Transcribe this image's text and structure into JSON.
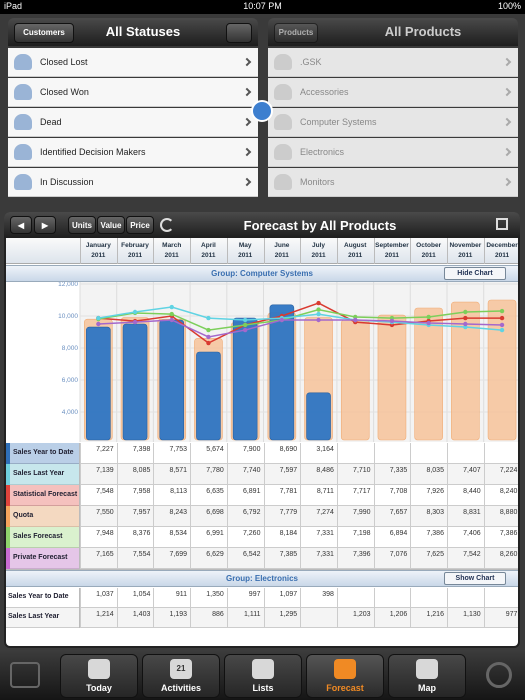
{
  "status_bar": {
    "device": "iPad",
    "time": "10:07 PM",
    "battery": "100%"
  },
  "left_panel": {
    "button": "Customers",
    "title": "All Statuses",
    "items": [
      "Closed Lost",
      "Closed Won",
      "Dead",
      "Identified Decision Makers",
      "In Discussion"
    ]
  },
  "right_panel": {
    "button": "Products",
    "title": "All Products",
    "items": [
      ".GSK",
      "Accessories",
      "Computer Systems",
      "Electronics",
      "Monitors"
    ]
  },
  "forecast": {
    "title": "Forecast by All Products",
    "toggles": [
      "Units",
      "Value",
      "Price"
    ],
    "months": [
      {
        "month": "January",
        "year": "2011"
      },
      {
        "month": "February",
        "year": "2011"
      },
      {
        "month": "March",
        "year": "2011"
      },
      {
        "month": "April",
        "year": "2011"
      },
      {
        "month": "May",
        "year": "2011"
      },
      {
        "month": "June",
        "year": "2011"
      },
      {
        "month": "July",
        "year": "2011"
      },
      {
        "month": "August",
        "year": "2011"
      },
      {
        "month": "September",
        "year": "2011"
      },
      {
        "month": "October",
        "year": "2011"
      },
      {
        "month": "November",
        "year": "2011"
      },
      {
        "month": "December",
        "year": "2011"
      }
    ],
    "groups": [
      {
        "title": "Group: Computer Systems",
        "button": "Hide Chart",
        "rows": [
          {
            "label": "Sales Year to Date",
            "color": "#2f6fb8",
            "cells": [
              "7,227",
              "7,398",
              "7,753",
              "5,674",
              "7,900",
              "8,690",
              "3,164",
              null,
              null,
              null,
              null,
              null
            ]
          },
          {
            "label": "Sales Last Year",
            "color": "#6fd0de",
            "cells": [
              "7,139",
              "8,085",
              "8,571",
              "7,780",
              "7,740",
              "7,597",
              "8,486",
              "7,710",
              "7,335",
              "8,035",
              "7,407",
              "7,224"
            ]
          },
          {
            "label": "Statistical Forecast",
            "color": "#e0443c",
            "cells": [
              "7,548",
              "7,958",
              "8,113",
              "6,635",
              "6,891",
              "7,781",
              "8,711",
              "7,717",
              "7,708",
              "7,926",
              "8,440",
              "8,240"
            ]
          },
          {
            "label": "Quota",
            "color": "#f5a45c",
            "cells": [
              "7,550",
              "7,957",
              "8,243",
              "6,698",
              "6,792",
              "7,779",
              "7,274",
              "7,990",
              "7,657",
              "8,303",
              "8,831",
              "8,880"
            ]
          },
          {
            "label": "Sales Forecast",
            "color": "#8fd46c",
            "cells": [
              "7,948",
              "8,376",
              "8,534",
              "6,991",
              "7,260",
              "8,184",
              "7,331",
              "7,198",
              "6,894",
              "7,386",
              "7,406",
              "7,386"
            ]
          },
          {
            "label": "Private Forecast",
            "color": "#c96cd2",
            "cells": [
              "7,165",
              "7,554",
              "7,699",
              "6,629",
              "6,542",
              "7,385",
              "7,331",
              "7,396",
              "7,076",
              "7,625",
              "7,542",
              "8,260"
            ]
          }
        ]
      },
      {
        "title": "Group: Electronics",
        "button": "Show Chart",
        "rows": [
          {
            "label": "Sales Year to Date",
            "color": "#2f6fb8",
            "cells": [
              "1,037",
              "1,054",
              "911",
              "1,350",
              "997",
              "1,097",
              "398",
              null,
              null,
              null,
              null,
              null
            ]
          },
          {
            "label": "Sales Last Year",
            "color": "#6fd0de",
            "cells": [
              "1,214",
              "1,403",
              "1,193",
              "886",
              "1,111",
              "1,295",
              null,
              "1,203",
              "1,206",
              "1,216",
              "1,130",
              "977"
            ]
          }
        ]
      }
    ],
    "chart_data": {
      "type": "bar",
      "ylim": [
        2250,
        12000
      ],
      "yticks": [
        {
          "value": 4000,
          "label": "4,000"
        },
        {
          "value": 6000,
          "label": "6,000"
        },
        {
          "value": 8000,
          "label": "8,000"
        },
        {
          "value": 10000,
          "label": "10,000"
        },
        {
          "value": 12000,
          "label": "12,000"
        }
      ],
      "grid": true,
      "bar_series": [
        {
          "color": "#f7c39a",
          "values": [
            9800,
            9900,
            9800,
            8600,
            9600,
            10200,
            9900,
            9750,
            10060,
            10500,
            10870,
            11000
          ]
        },
        {
          "color": "#2f76c4",
          "values": [
            9310,
            9500,
            9750,
            7750,
            9870,
            10700,
            5200,
            null,
            null,
            null,
            null,
            null
          ]
        }
      ],
      "line_series": [
        {
          "color": "#d93a30",
          "values": [
            9870,
            9680,
            10000,
            8310,
            9440,
            10000,
            10810,
            9620,
            9440,
            9690,
            9870,
            9870
          ]
        },
        {
          "color": "#7ccf5a",
          "values": [
            9810,
            10190,
            10120,
            9120,
            9440,
            9750,
            10400,
            9940,
            9870,
            9940,
            10250,
            10310
          ]
        },
        {
          "color": "#5fd3e3",
          "values": [
            9870,
            10250,
            10560,
            9870,
            9750,
            9870,
            10120,
            9750,
            9620,
            9440,
            9310,
            9120
          ]
        },
        {
          "color": "#a468cc",
          "values": [
            9500,
            9620,
            9750,
            8690,
            9120,
            9750,
            9750,
            9750,
            9690,
            9560,
            9500,
            9440
          ]
        }
      ]
    }
  },
  "tab_bar": {
    "calendar_day": "21",
    "tabs": [
      "Today",
      "Activities",
      "Lists",
      "Forecast",
      "Map"
    ],
    "selected": 3
  }
}
